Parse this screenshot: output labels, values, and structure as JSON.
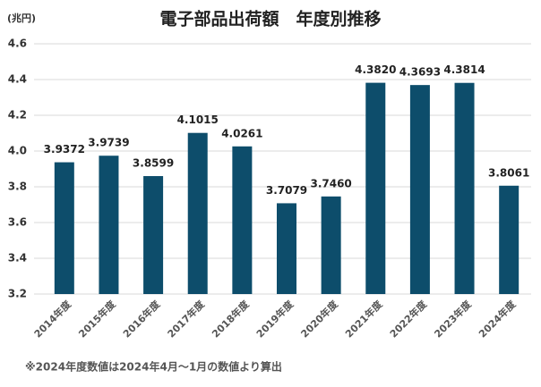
{
  "chart_data": {
    "type": "bar",
    "title": "電子部品出荷額　年度別推移",
    "unit_label": "(兆円)",
    "categories": [
      "2014年度",
      "2015年度",
      "2016年度",
      "2017年度",
      "2018年度",
      "2019年度",
      "2020年度",
      "2021年度",
      "2022年度",
      "2023年度",
      "2024年度"
    ],
    "values": [
      3.9372,
      3.9739,
      3.8599,
      4.1015,
      4.0261,
      3.7079,
      3.746,
      4.382,
      4.3693,
      4.3814,
      3.8061
    ],
    "value_labels": [
      "3.9372",
      "3.9739",
      "3.8599",
      "4.1015",
      "4.0261",
      "3.7079",
      "3.7460",
      "4.3820",
      "4.3693",
      "4.3814",
      "3.8061"
    ],
    "color": "#0d4d6b",
    "ylim": [
      3.2,
      4.6
    ],
    "yticks": [
      3.2,
      3.4,
      3.6,
      3.8,
      {
        "value": 4,
        "label": "4.0"
      },
      4.2,
      4.4,
      4.6
    ],
    "grid": true,
    "note": "※2024年度数値は2024年4月～1月の数値より算出"
  }
}
